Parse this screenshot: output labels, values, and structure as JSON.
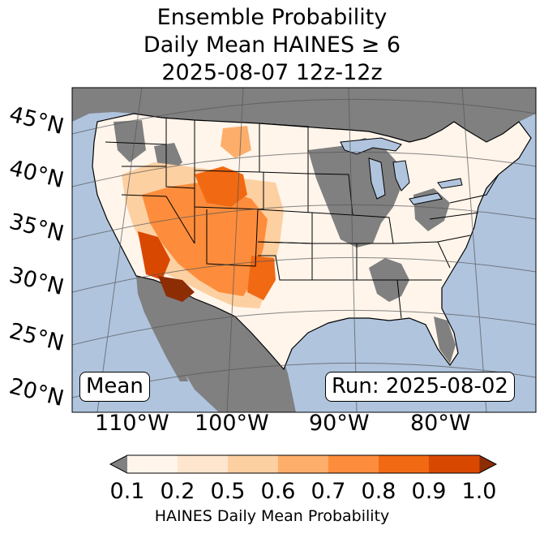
{
  "title": {
    "line1": "Ensemble Probability",
    "line2": "Daily Mean HAINES ≥ 6",
    "line3": "2025-08-07 12z-12z"
  },
  "labels": {
    "mean": "Mean",
    "run": "Run: 2025-08-02"
  },
  "lat_labels": [
    "45°N",
    "40°N",
    "35°N",
    "30°N",
    "25°N",
    "20°N"
  ],
  "lon_labels": [
    "110°W",
    "100°W",
    "90°W",
    "80°W"
  ],
  "colorbar": {
    "ticks": [
      "0.1",
      "0.2",
      "0.5",
      "0.6",
      "0.7",
      "0.8",
      "0.9",
      "1.0"
    ],
    "label": "HAINES Daily Mean Probability",
    "colors": [
      "#fff5eb",
      "#fee6ce",
      "#fdd0a2",
      "#fdae6b",
      "#fd8d3c",
      "#f16913",
      "#d94801",
      "#8c2d04"
    ],
    "under_color": "#808080",
    "ocean_color": "#b0c4de",
    "missing_color": "#808080"
  }
}
